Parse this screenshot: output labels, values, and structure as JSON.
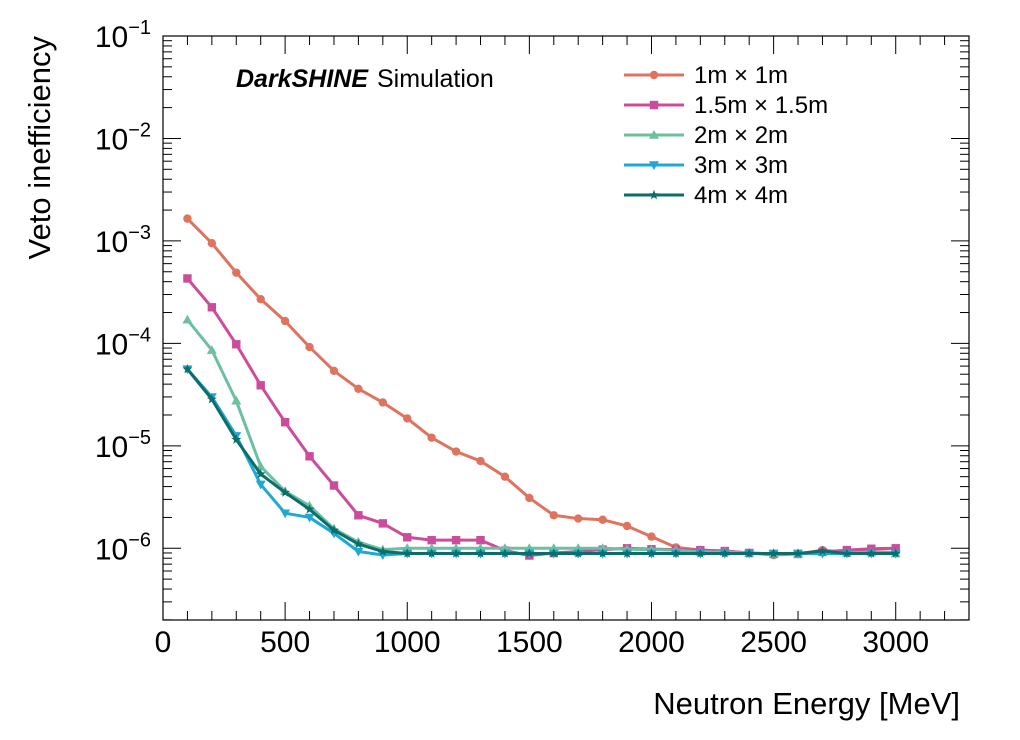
{
  "chart_data": {
    "type": "line",
    "title": "",
    "annotation": {
      "brand": "DarkSHINE",
      "text": "Simulation"
    },
    "xlabel": "Neutron Energy [MeV]",
    "ylabel": "Veto inefficiency",
    "xlim": [
      0,
      3300
    ],
    "ylim_log10": [
      -6.7,
      -1
    ],
    "yscale": "log",
    "x_ticks": [
      0,
      500,
      1000,
      1500,
      2000,
      2500,
      3000
    ],
    "x_tick_labels": [
      "0",
      "500",
      "1000",
      "1500",
      "2000",
      "2500",
      "3000"
    ],
    "y_ticks_exp": [
      -6,
      -5,
      -4,
      -3,
      -2,
      -1
    ],
    "y_tick_base": "10",
    "y_tick_exps": [
      "−6",
      "−5",
      "−4",
      "−3",
      "−2",
      "−1"
    ],
    "legend_position": "top-right",
    "x": [
      100,
      200,
      300,
      400,
      500,
      600,
      700,
      800,
      900,
      1000,
      1100,
      1200,
      1300,
      1400,
      1500,
      1600,
      1700,
      1800,
      1900,
      2000,
      2100,
      2200,
      2300,
      2400,
      2500,
      2600,
      2700,
      2800,
      2900,
      3000
    ],
    "series": [
      {
        "name": "1m × 1m",
        "color": "#e0735f",
        "marker": "circle",
        "values": [
          0.00165,
          0.00095,
          0.00049,
          0.00027,
          0.000165,
          9.2e-05,
          5.4e-05,
          3.6e-05,
          2.65e-05,
          1.85e-05,
          1.2e-05,
          8.8e-06,
          7.1e-06,
          5e-06,
          3.1e-06,
          2.1e-06,
          1.95e-06,
          1.9e-06,
          1.65e-06,
          1.3e-06,
          1.02e-06,
          9.6e-07,
          9.4e-07,
          9e-07,
          8.6e-07,
          8.8e-07,
          9.6e-07,
          9.1e-07,
          9.3e-07,
          9.1e-07
        ]
      },
      {
        "name": "1.5m × 1.5m",
        "color": "#cc4c9c",
        "marker": "square",
        "values": [
          0.00043,
          0.000225,
          9.8e-05,
          3.9e-05,
          1.7e-05,
          7.9e-06,
          4.1e-06,
          2.1e-06,
          1.75e-06,
          1.28e-06,
          1.2e-06,
          1.2e-06,
          1.2e-06,
          9.5e-07,
          8.5e-07,
          9e-07,
          9.3e-07,
          9.7e-07,
          1e-06,
          9.8e-07,
          9.7e-07,
          9.6e-07,
          9.4e-07,
          9e-07,
          8.8e-07,
          8.8e-07,
          9.2e-07,
          9.6e-07,
          9.9e-07,
          1e-06
        ]
      },
      {
        "name": "2m × 2m",
        "color": "#6cc09e",
        "marker": "triangle-up",
        "values": [
          0.00017,
          8.6e-05,
          2.75e-05,
          6.3e-06,
          3.6e-06,
          2.6e-06,
          1.55e-06,
          1.15e-06,
          9.7e-07,
          1e-06,
          1e-06,
          1e-06,
          1e-06,
          1e-06,
          1e-06,
          1e-06,
          1e-06,
          1e-06,
          9.8e-07,
          9.7e-07,
          9.6e-07,
          9.2e-07,
          9.2e-07,
          9e-07,
          8.8e-07,
          8.8e-07,
          9.3e-07,
          9e-07,
          9.1e-07,
          8.9e-07
        ]
      },
      {
        "name": "3m × 3m",
        "color": "#1fa8d4",
        "marker": "triangle-down",
        "values": [
          5.6e-05,
          3e-05,
          1.25e-05,
          4.2e-06,
          2.2e-06,
          2e-06,
          1.4e-06,
          9.3e-07,
          8.6e-07,
          8.9e-07,
          8.9e-07,
          8.9e-07,
          8.9e-07,
          8.9e-07,
          8.9e-07,
          8.9e-07,
          8.9e-07,
          8.9e-07,
          8.9e-07,
          8.9e-07,
          8.9e-07,
          8.9e-07,
          8.9e-07,
          8.9e-07,
          8.9e-07,
          8.9e-07,
          8.9e-07,
          8.9e-07,
          8.9e-07,
          8.9e-07
        ]
      },
      {
        "name": "4m × 4m",
        "color": "#0c6e6a",
        "marker": "star",
        "values": [
          5.6e-05,
          2.85e-05,
          1.15e-05,
          5.3e-06,
          3.5e-06,
          2.4e-06,
          1.5e-06,
          1.1e-06,
          9.3e-07,
          8.9e-07,
          8.9e-07,
          8.9e-07,
          8.9e-07,
          8.9e-07,
          8.9e-07,
          8.9e-07,
          8.9e-07,
          8.9e-07,
          8.9e-07,
          8.9e-07,
          8.9e-07,
          8.9e-07,
          8.9e-07,
          8.9e-07,
          8.9e-07,
          8.9e-07,
          9.4e-07,
          8.9e-07,
          8.9e-07,
          8.9e-07
        ]
      }
    ]
  }
}
